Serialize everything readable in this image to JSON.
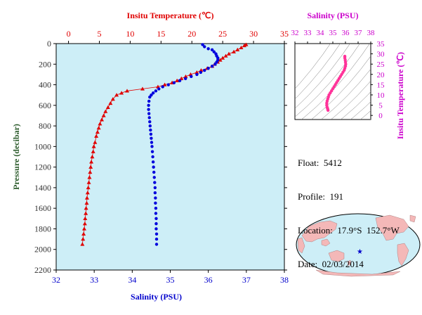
{
  "chart_data": [
    {
      "type": "scatter",
      "title": "",
      "ylabel": "Pressure (decibar)",
      "ylim": [
        2200,
        0
      ],
      "yticks": [
        0,
        200,
        400,
        600,
        800,
        1000,
        1200,
        1400,
        1600,
        1800,
        2000,
        2200
      ],
      "top_axis": {
        "label": "Insitu Temperature (℃)",
        "range": [
          -2,
          35
        ],
        "ticks": [
          0,
          5,
          10,
          15,
          20,
          25,
          30,
          35
        ],
        "color": "#e00000"
      },
      "bottom_axis": {
        "label": "Salinity (PSU)",
        "range": [
          32,
          38
        ],
        "ticks": [
          32,
          33,
          34,
          35,
          36,
          37,
          38
        ],
        "color": "#0000cc"
      },
      "grid": false,
      "plot_background": "#cdeef7",
      "series": [
        {
          "name": "",
          "marker": "triangle",
          "color": "#e00000",
          "axis": "top",
          "points": [
            [
              28.8,
              10
            ],
            [
              28.5,
              20
            ],
            [
              28.0,
              40
            ],
            [
              27.4,
              60
            ],
            [
              26.8,
              80
            ],
            [
              26.0,
              100
            ],
            [
              25.5,
              120
            ],
            [
              25.0,
              140
            ],
            [
              24.6,
              160
            ],
            [
              24.2,
              180
            ],
            [
              23.7,
              200
            ],
            [
              23.3,
              220
            ],
            [
              22.5,
              240
            ],
            [
              21.5,
              260
            ],
            [
              20.8,
              280
            ],
            [
              19.8,
              300
            ],
            [
              19.0,
              320
            ],
            [
              18.3,
              340
            ],
            [
              17.6,
              360
            ],
            [
              16.8,
              380
            ],
            [
              15.6,
              400
            ],
            [
              14.5,
              420
            ],
            [
              12.0,
              440
            ],
            [
              9.5,
              460
            ],
            [
              8.6,
              480
            ],
            [
              7.8,
              500
            ],
            [
              7.2,
              540
            ],
            [
              6.8,
              580
            ],
            [
              6.4,
              620
            ],
            [
              6.0,
              660
            ],
            [
              5.7,
              700
            ],
            [
              5.4,
              740
            ],
            [
              5.1,
              780
            ],
            [
              4.9,
              820
            ],
            [
              4.7,
              860
            ],
            [
              4.5,
              900
            ],
            [
              4.3,
              960
            ],
            [
              4.1,
              1000
            ],
            [
              4.0,
              1050
            ],
            [
              3.85,
              1100
            ],
            [
              3.7,
              1150
            ],
            [
              3.6,
              1200
            ],
            [
              3.5,
              1250
            ],
            [
              3.4,
              1300
            ],
            [
              3.3,
              1350
            ],
            [
              3.2,
              1400
            ],
            [
              3.1,
              1450
            ],
            [
              3.0,
              1500
            ],
            [
              2.95,
              1550
            ],
            [
              2.85,
              1600
            ],
            [
              2.8,
              1650
            ],
            [
              2.7,
              1700
            ],
            [
              2.65,
              1750
            ],
            [
              2.55,
              1800
            ],
            [
              2.45,
              1850
            ],
            [
              2.35,
              1900
            ],
            [
              2.25,
              1950
            ]
          ]
        },
        {
          "name": "",
          "marker": "circle",
          "color": "#0000dd",
          "axis": "bottom",
          "points": [
            [
              35.85,
              10
            ],
            [
              35.9,
              30
            ],
            [
              36.0,
              50
            ],
            [
              36.1,
              60
            ],
            [
              36.15,
              80
            ],
            [
              36.2,
              100
            ],
            [
              36.22,
              120
            ],
            [
              36.25,
              140
            ],
            [
              36.25,
              160
            ],
            [
              36.22,
              180
            ],
            [
              36.18,
              200
            ],
            [
              36.1,
              220
            ],
            [
              36.0,
              240
            ],
            [
              35.9,
              260
            ],
            [
              35.8,
              280
            ],
            [
              35.7,
              300
            ],
            [
              35.55,
              320
            ],
            [
              35.4,
              340
            ],
            [
              35.25,
              360
            ],
            [
              35.1,
              380
            ],
            [
              34.95,
              400
            ],
            [
              34.8,
              420
            ],
            [
              34.7,
              440
            ],
            [
              34.62,
              460
            ],
            [
              34.55,
              480
            ],
            [
              34.5,
              500
            ],
            [
              34.46,
              520
            ],
            [
              34.44,
              560
            ],
            [
              34.43,
              600
            ],
            [
              34.43,
              640
            ],
            [
              34.44,
              680
            ],
            [
              34.45,
              720
            ],
            [
              34.46,
              760
            ],
            [
              34.47,
              800
            ],
            [
              34.48,
              840
            ],
            [
              34.49,
              880
            ],
            [
              34.5,
              920
            ],
            [
              34.51,
              960
            ],
            [
              34.52,
              1000
            ],
            [
              34.53,
              1050
            ],
            [
              34.54,
              1100
            ],
            [
              34.55,
              1150
            ],
            [
              34.56,
              1200
            ],
            [
              34.57,
              1250
            ],
            [
              34.58,
              1300
            ],
            [
              34.59,
              1350
            ],
            [
              34.6,
              1400
            ],
            [
              34.6,
              1450
            ],
            [
              34.61,
              1500
            ],
            [
              34.61,
              1550
            ],
            [
              34.62,
              1600
            ],
            [
              34.62,
              1650
            ],
            [
              34.63,
              1700
            ],
            [
              34.63,
              1750
            ],
            [
              34.63,
              1800
            ],
            [
              34.64,
              1850
            ],
            [
              34.64,
              1900
            ],
            [
              34.64,
              1950
            ]
          ]
        }
      ]
    },
    {
      "type": "scatter",
      "title": "",
      "top_axis": {
        "label": "Salinity (PSU)",
        "range": [
          32,
          38
        ],
        "ticks": [
          32,
          33,
          34,
          35,
          36,
          37,
          38
        ],
        "color": "#cc00cc"
      },
      "right_axis": {
        "label": "Insitu Temperature (℃)",
        "range": [
          -2,
          35
        ],
        "ticks": [
          0,
          5,
          10,
          15,
          20,
          25,
          30,
          35
        ],
        "color": "#cc00cc"
      },
      "contours": true,
      "series": [
        {
          "name": "",
          "marker": "circle",
          "color": "#ff3399",
          "points": [
            [
              35.95,
              28.8
            ],
            [
              35.95,
              28.0
            ],
            [
              35.98,
              27.0
            ],
            [
              36.0,
              26.0
            ],
            [
              36.02,
              25.0
            ],
            [
              36.0,
              24.0
            ],
            [
              35.95,
              23.0
            ],
            [
              35.9,
              22.0
            ],
            [
              35.8,
              21.0
            ],
            [
              35.7,
              20.0
            ],
            [
              35.6,
              19.0
            ],
            [
              35.5,
              18.0
            ],
            [
              35.4,
              17.0
            ],
            [
              35.3,
              16.0
            ],
            [
              35.2,
              15.0
            ],
            [
              35.1,
              14.0
            ],
            [
              35.0,
              13.0
            ],
            [
              34.9,
              12.0
            ],
            [
              34.8,
              11.0
            ],
            [
              34.7,
              10.0
            ],
            [
              34.65,
              9.0
            ],
            [
              34.6,
              8.0
            ],
            [
              34.55,
              7.0
            ],
            [
              34.52,
              6.0
            ],
            [
              34.52,
              5.0
            ],
            [
              34.55,
              4.0
            ],
            [
              34.58,
              3.5
            ],
            [
              34.6,
              3.0
            ],
            [
              34.62,
              2.5
            ]
          ]
        }
      ]
    }
  ],
  "float_info": {
    "float": "Float:  5412",
    "profile": "Profile:  191",
    "location": "Location:  17.9°S  152.7°W",
    "date": "Date:  02/03/2014"
  },
  "map": {
    "marker_lon": -152.7,
    "marker_lat": -17.9,
    "ocean_color": "#cdeef7",
    "land_color": "#f4b8b8",
    "marker_color": "#0000cc"
  }
}
